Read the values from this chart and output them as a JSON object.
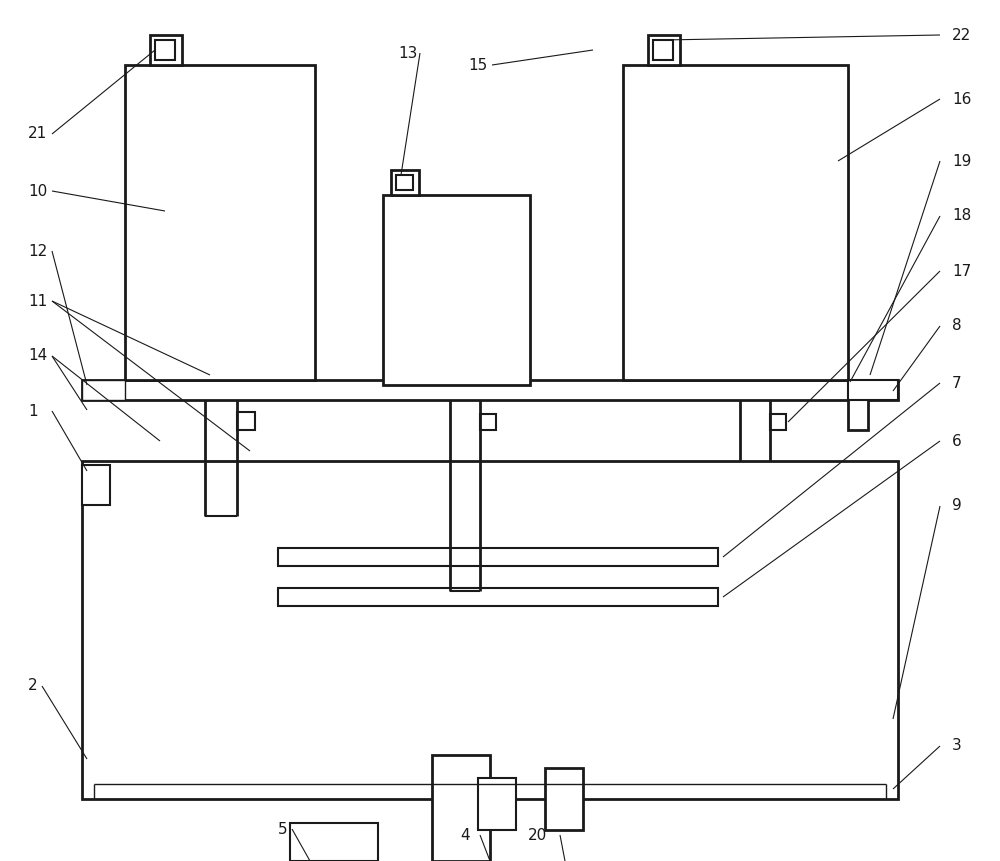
{
  "bg_color": "#ffffff",
  "line_color": "#1a1a1a",
  "lw_thick": 2.0,
  "lw_med": 1.5,
  "lw_thin": 1.0,
  "lw_annot": 0.8,
  "label_fontsize": 11,
  "fig_width": 10.0,
  "fig_height": 8.61
}
